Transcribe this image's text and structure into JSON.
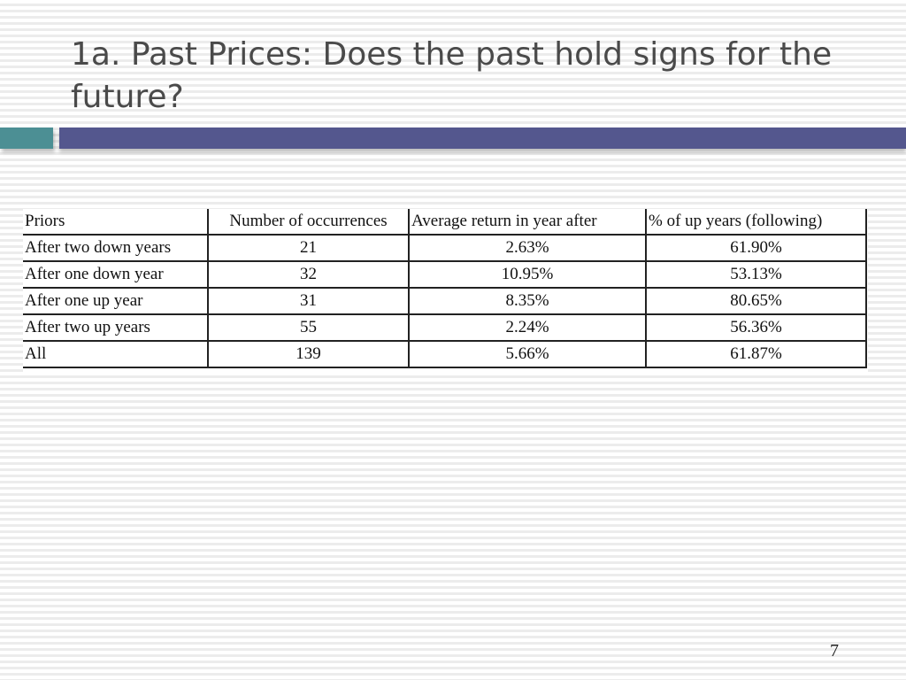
{
  "slide": {
    "title": "1a. Past Prices: Does the past hold signs for the future?",
    "page_number": "7"
  },
  "table": {
    "headers": [
      "Priors",
      "Number of occurrences",
      "Average return in year after",
      "% of up years (following)"
    ],
    "rows": [
      [
        "After two down years",
        "21",
        "2.63%",
        "61.90%"
      ],
      [
        "After one down year",
        "32",
        "10.95%",
        "53.13%"
      ],
      [
        "After one up year",
        "31",
        "8.35%",
        "80.65%"
      ],
      [
        "After two up years",
        "55",
        "2.24%",
        "56.36%"
      ],
      [
        "All",
        "139",
        "5.66%",
        "61.87%"
      ]
    ]
  },
  "colors": {
    "title_text": "#4a4a4a",
    "accent_teal": "#4c8f94",
    "accent_purple": "#54578e"
  }
}
